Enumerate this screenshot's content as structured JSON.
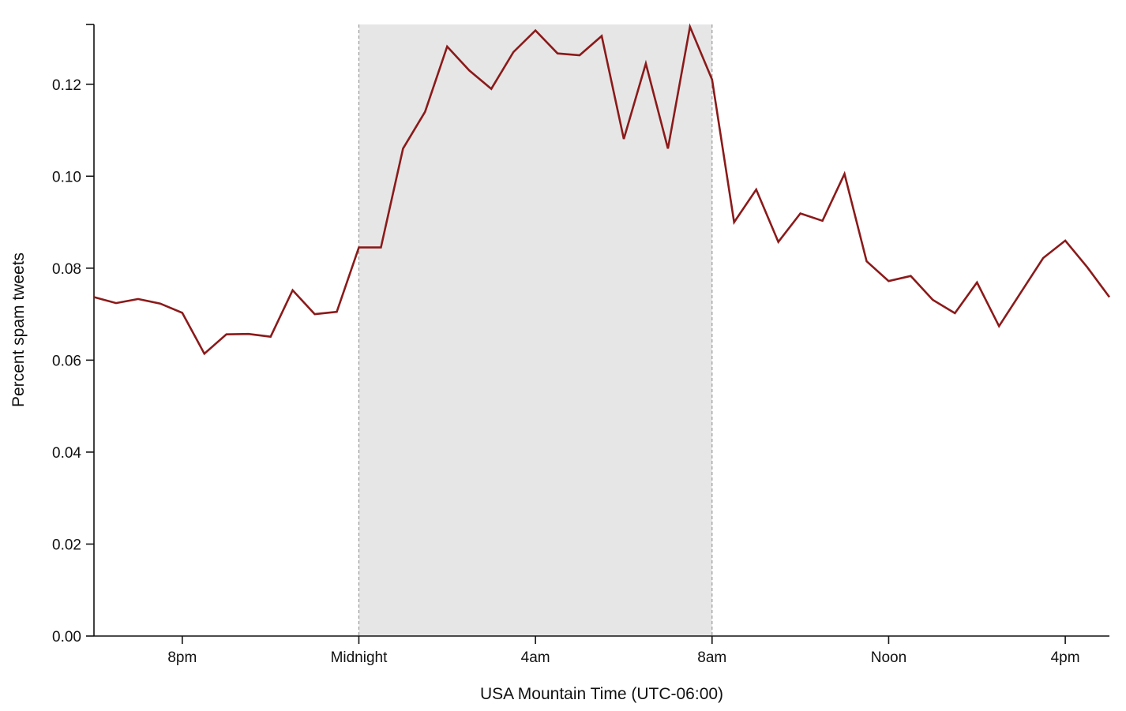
{
  "chart_data": {
    "type": "line",
    "title": "",
    "xlabel": "USA Mountain Time (UTC-06:00)",
    "ylabel": "Percent spam tweets",
    "x_unit": "hours since 8pm",
    "x_range": [
      -2.0,
      21.0
    ],
    "ylim": [
      0.0,
      0.133
    ],
    "grid": false,
    "legend": "none",
    "x_ticks": [
      {
        "label": "8pm",
        "value": 0
      },
      {
        "label": "Midnight",
        "value": 4
      },
      {
        "label": "4am",
        "value": 8
      },
      {
        "label": "8am",
        "value": 12
      },
      {
        "label": "Noon",
        "value": 16
      },
      {
        "label": "4pm",
        "value": 20
      }
    ],
    "y_ticks": [
      {
        "label": "0.00",
        "value": 0.0
      },
      {
        "label": "0.02",
        "value": 0.02
      },
      {
        "label": "0.04",
        "value": 0.04
      },
      {
        "label": "0.06",
        "value": 0.06
      },
      {
        "label": "0.08",
        "value": 0.08
      },
      {
        "label": "0.10",
        "value": 0.1
      },
      {
        "label": "0.12",
        "value": 0.12
      }
    ],
    "shaded_region": {
      "x_start": 4,
      "x_end": 12,
      "color": "#e6e6e6",
      "boundary_color": "#9a9a9a"
    },
    "series": [
      {
        "color": "#8b1a1a",
        "x": [
          -2.0,
          -1.5,
          -1.0,
          -0.5,
          0.0,
          0.5,
          1.0,
          1.5,
          2.0,
          2.5,
          3.0,
          3.5,
          4.0,
          4.5,
          5.0,
          5.5,
          6.0,
          6.5,
          7.0,
          7.5,
          8.0,
          8.5,
          9.0,
          9.5,
          10.0,
          10.5,
          11.0,
          11.5,
          12.0,
          12.5,
          13.0,
          13.5,
          14.0,
          14.5,
          15.0,
          15.5,
          16.0,
          16.5,
          17.0,
          17.5,
          18.0,
          18.5,
          19.0,
          19.5,
          20.0,
          20.5,
          21.0
        ],
        "y": [
          0.0737,
          0.0724,
          0.0733,
          0.0723,
          0.0703,
          0.0614,
          0.0656,
          0.0657,
          0.0651,
          0.0752,
          0.07,
          0.0705,
          0.0845,
          0.0845,
          0.106,
          0.114,
          0.1282,
          0.123,
          0.119,
          0.127,
          0.1317,
          0.1267,
          0.1263,
          0.1305,
          0.1081,
          0.1245,
          0.106,
          0.1325,
          0.121,
          0.09,
          0.0971,
          0.0857,
          0.0919,
          0.0903,
          0.1005,
          0.0815,
          0.0772,
          0.0783,
          0.0731,
          0.0702,
          0.0769,
          0.0674,
          0.0748,
          0.0822,
          0.086,
          0.0802,
          0.0737
        ]
      }
    ]
  }
}
